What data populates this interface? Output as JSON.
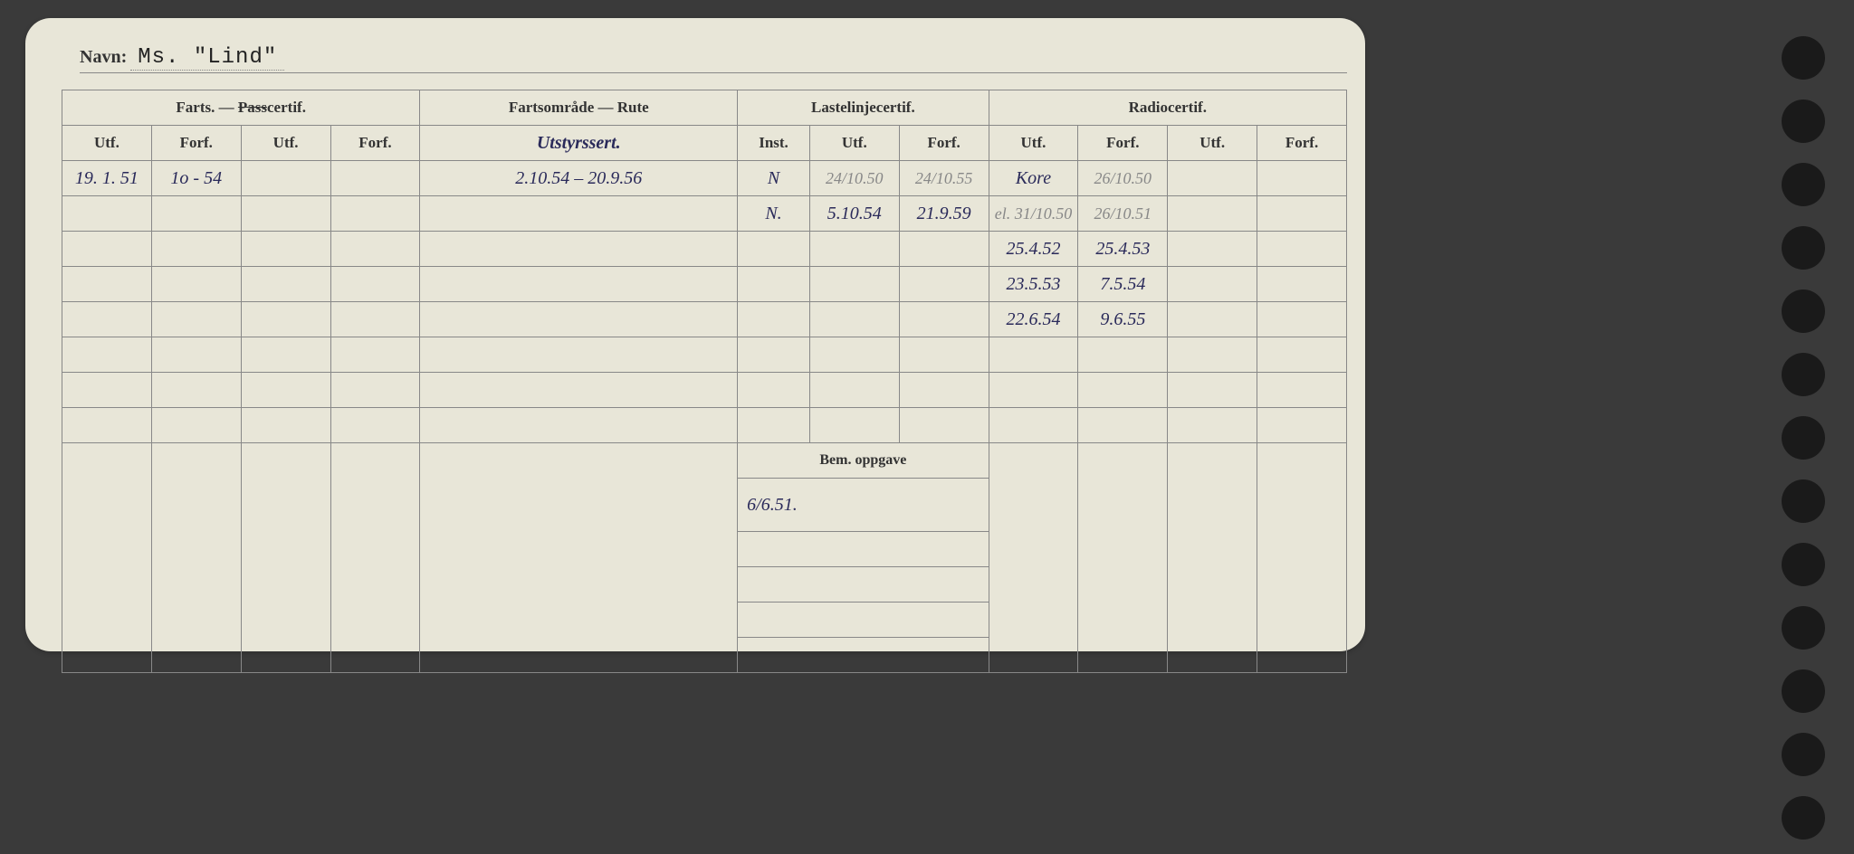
{
  "name_label": "Navn:",
  "name_value": "Ms. \"Lind\"",
  "headers": {
    "farts_pass": "Farts. — ",
    "farts_pass_strike": "Pass",
    "farts_pass_suffix": "certif.",
    "fartsomrade": "Fartsområde — Rute",
    "lastelinje": "Lastelinjecertif.",
    "radio": "Radiocertif.",
    "utf": "Utf.",
    "forf": "Forf.",
    "inst": "Inst.",
    "bem": "Bem. oppgave"
  },
  "route_hw_header": "Utstyrssert.",
  "rows": [
    {
      "f_utf1": "19. 1. 51",
      "f_forf1": "1o - 54",
      "f_utf2": "",
      "f_forf2": "",
      "route": "2.10.54 – 20.9.56",
      "l_inst": "N",
      "l_utf": "24/10.50",
      "l_forf": "24/10.55",
      "r_utf1": "Kore",
      "r_forf1": "26/10.50",
      "r_utf2": "",
      "r_forf2": ""
    },
    {
      "f_utf1": "",
      "f_forf1": "",
      "f_utf2": "",
      "f_forf2": "",
      "route": "",
      "l_inst": "N.",
      "l_utf": "5.10.54",
      "l_forf": "21.9.59",
      "r_utf1": "el. 31/10.50",
      "r_forf1": "26/10.51",
      "r_utf2": "",
      "r_forf2": ""
    },
    {
      "f_utf1": "",
      "f_forf1": "",
      "f_utf2": "",
      "f_forf2": "",
      "route": "",
      "l_inst": "",
      "l_utf": "",
      "l_forf": "",
      "r_utf1": "25.4.52",
      "r_forf1": "25.4.53",
      "r_utf2": "",
      "r_forf2": ""
    },
    {
      "f_utf1": "",
      "f_forf1": "",
      "f_utf2": "",
      "f_forf2": "",
      "route": "",
      "l_inst": "",
      "l_utf": "",
      "l_forf": "",
      "r_utf1": "23.5.53",
      "r_forf1": "7.5.54",
      "r_utf2": "",
      "r_forf2": ""
    },
    {
      "f_utf1": "",
      "f_forf1": "",
      "f_utf2": "",
      "f_forf2": "",
      "route": "",
      "l_inst": "",
      "l_utf": "",
      "l_forf": "",
      "r_utf1": "22.6.54",
      "r_forf1": "9.6.55",
      "r_utf2": "",
      "r_forf2": ""
    },
    {
      "f_utf1": "",
      "f_forf1": "",
      "f_utf2": "",
      "f_forf2": "",
      "route": "",
      "l_inst": "",
      "l_utf": "",
      "l_forf": "",
      "r_utf1": "",
      "r_forf1": "",
      "r_utf2": "",
      "r_forf2": ""
    },
    {
      "f_utf1": "",
      "f_forf1": "",
      "f_utf2": "",
      "f_forf2": "",
      "route": "",
      "l_inst": "",
      "l_utf": "",
      "l_forf": "",
      "r_utf1": "",
      "r_forf1": "",
      "r_utf2": "",
      "r_forf2": ""
    },
    {
      "f_utf1": "",
      "f_forf1": "",
      "f_utf2": "",
      "f_forf2": "",
      "route": "",
      "l_inst": "",
      "l_utf": "",
      "l_forf": "",
      "r_utf1": "",
      "r_forf1": "",
      "r_utf2": "",
      "r_forf2": ""
    }
  ],
  "bem_value": "6/6.51.",
  "lower_blank_rows": 5,
  "colors": {
    "card_bg": "#e8e6d8",
    "border": "#888888",
    "text": "#333333",
    "handwriting": "#2a2a5a",
    "handwriting_light": "#888888",
    "page_bg": "#3a3a3a",
    "hole": "#1a1a1a"
  },
  "punch_holes": 13
}
